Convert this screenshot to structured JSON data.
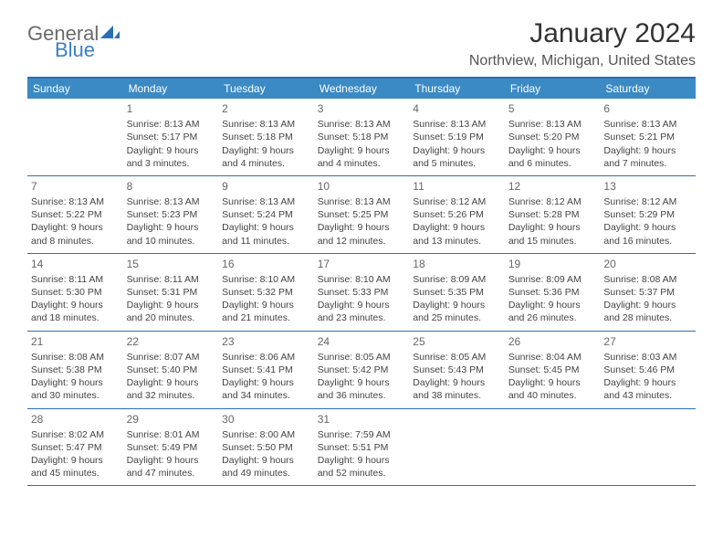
{
  "logo": {
    "part1": "General",
    "part2": "Blue"
  },
  "title": "January 2024",
  "location": "Northview, Michigan, United States",
  "header_bg": "#3b8ac4",
  "border_color": "#2a6fb5",
  "day_names": [
    "Sunday",
    "Monday",
    "Tuesday",
    "Wednesday",
    "Thursday",
    "Friday",
    "Saturday"
  ],
  "weeks": [
    [
      {
        "n": "",
        "sr": "",
        "ss": "",
        "d1": "",
        "d2": ""
      },
      {
        "n": "1",
        "sr": "Sunrise: 8:13 AM",
        "ss": "Sunset: 5:17 PM",
        "d1": "Daylight: 9 hours",
        "d2": "and 3 minutes."
      },
      {
        "n": "2",
        "sr": "Sunrise: 8:13 AM",
        "ss": "Sunset: 5:18 PM",
        "d1": "Daylight: 9 hours",
        "d2": "and 4 minutes."
      },
      {
        "n": "3",
        "sr": "Sunrise: 8:13 AM",
        "ss": "Sunset: 5:18 PM",
        "d1": "Daylight: 9 hours",
        "d2": "and 4 minutes."
      },
      {
        "n": "4",
        "sr": "Sunrise: 8:13 AM",
        "ss": "Sunset: 5:19 PM",
        "d1": "Daylight: 9 hours",
        "d2": "and 5 minutes."
      },
      {
        "n": "5",
        "sr": "Sunrise: 8:13 AM",
        "ss": "Sunset: 5:20 PM",
        "d1": "Daylight: 9 hours",
        "d2": "and 6 minutes."
      },
      {
        "n": "6",
        "sr": "Sunrise: 8:13 AM",
        "ss": "Sunset: 5:21 PM",
        "d1": "Daylight: 9 hours",
        "d2": "and 7 minutes."
      }
    ],
    [
      {
        "n": "7",
        "sr": "Sunrise: 8:13 AM",
        "ss": "Sunset: 5:22 PM",
        "d1": "Daylight: 9 hours",
        "d2": "and 8 minutes."
      },
      {
        "n": "8",
        "sr": "Sunrise: 8:13 AM",
        "ss": "Sunset: 5:23 PM",
        "d1": "Daylight: 9 hours",
        "d2": "and 10 minutes."
      },
      {
        "n": "9",
        "sr": "Sunrise: 8:13 AM",
        "ss": "Sunset: 5:24 PM",
        "d1": "Daylight: 9 hours",
        "d2": "and 11 minutes."
      },
      {
        "n": "10",
        "sr": "Sunrise: 8:13 AM",
        "ss": "Sunset: 5:25 PM",
        "d1": "Daylight: 9 hours",
        "d2": "and 12 minutes."
      },
      {
        "n": "11",
        "sr": "Sunrise: 8:12 AM",
        "ss": "Sunset: 5:26 PM",
        "d1": "Daylight: 9 hours",
        "d2": "and 13 minutes."
      },
      {
        "n": "12",
        "sr": "Sunrise: 8:12 AM",
        "ss": "Sunset: 5:28 PM",
        "d1": "Daylight: 9 hours",
        "d2": "and 15 minutes."
      },
      {
        "n": "13",
        "sr": "Sunrise: 8:12 AM",
        "ss": "Sunset: 5:29 PM",
        "d1": "Daylight: 9 hours",
        "d2": "and 16 minutes."
      }
    ],
    [
      {
        "n": "14",
        "sr": "Sunrise: 8:11 AM",
        "ss": "Sunset: 5:30 PM",
        "d1": "Daylight: 9 hours",
        "d2": "and 18 minutes."
      },
      {
        "n": "15",
        "sr": "Sunrise: 8:11 AM",
        "ss": "Sunset: 5:31 PM",
        "d1": "Daylight: 9 hours",
        "d2": "and 20 minutes."
      },
      {
        "n": "16",
        "sr": "Sunrise: 8:10 AM",
        "ss": "Sunset: 5:32 PM",
        "d1": "Daylight: 9 hours",
        "d2": "and 21 minutes."
      },
      {
        "n": "17",
        "sr": "Sunrise: 8:10 AM",
        "ss": "Sunset: 5:33 PM",
        "d1": "Daylight: 9 hours",
        "d2": "and 23 minutes."
      },
      {
        "n": "18",
        "sr": "Sunrise: 8:09 AM",
        "ss": "Sunset: 5:35 PM",
        "d1": "Daylight: 9 hours",
        "d2": "and 25 minutes."
      },
      {
        "n": "19",
        "sr": "Sunrise: 8:09 AM",
        "ss": "Sunset: 5:36 PM",
        "d1": "Daylight: 9 hours",
        "d2": "and 26 minutes."
      },
      {
        "n": "20",
        "sr": "Sunrise: 8:08 AM",
        "ss": "Sunset: 5:37 PM",
        "d1": "Daylight: 9 hours",
        "d2": "and 28 minutes."
      }
    ],
    [
      {
        "n": "21",
        "sr": "Sunrise: 8:08 AM",
        "ss": "Sunset: 5:38 PM",
        "d1": "Daylight: 9 hours",
        "d2": "and 30 minutes."
      },
      {
        "n": "22",
        "sr": "Sunrise: 8:07 AM",
        "ss": "Sunset: 5:40 PM",
        "d1": "Daylight: 9 hours",
        "d2": "and 32 minutes."
      },
      {
        "n": "23",
        "sr": "Sunrise: 8:06 AM",
        "ss": "Sunset: 5:41 PM",
        "d1": "Daylight: 9 hours",
        "d2": "and 34 minutes."
      },
      {
        "n": "24",
        "sr": "Sunrise: 8:05 AM",
        "ss": "Sunset: 5:42 PM",
        "d1": "Daylight: 9 hours",
        "d2": "and 36 minutes."
      },
      {
        "n": "25",
        "sr": "Sunrise: 8:05 AM",
        "ss": "Sunset: 5:43 PM",
        "d1": "Daylight: 9 hours",
        "d2": "and 38 minutes."
      },
      {
        "n": "26",
        "sr": "Sunrise: 8:04 AM",
        "ss": "Sunset: 5:45 PM",
        "d1": "Daylight: 9 hours",
        "d2": "and 40 minutes."
      },
      {
        "n": "27",
        "sr": "Sunrise: 8:03 AM",
        "ss": "Sunset: 5:46 PM",
        "d1": "Daylight: 9 hours",
        "d2": "and 43 minutes."
      }
    ],
    [
      {
        "n": "28",
        "sr": "Sunrise: 8:02 AM",
        "ss": "Sunset: 5:47 PM",
        "d1": "Daylight: 9 hours",
        "d2": "and 45 minutes."
      },
      {
        "n": "29",
        "sr": "Sunrise: 8:01 AM",
        "ss": "Sunset: 5:49 PM",
        "d1": "Daylight: 9 hours",
        "d2": "and 47 minutes."
      },
      {
        "n": "30",
        "sr": "Sunrise: 8:00 AM",
        "ss": "Sunset: 5:50 PM",
        "d1": "Daylight: 9 hours",
        "d2": "and 49 minutes."
      },
      {
        "n": "31",
        "sr": "Sunrise: 7:59 AM",
        "ss": "Sunset: 5:51 PM",
        "d1": "Daylight: 9 hours",
        "d2": "and 52 minutes."
      },
      {
        "n": "",
        "sr": "",
        "ss": "",
        "d1": "",
        "d2": ""
      },
      {
        "n": "",
        "sr": "",
        "ss": "",
        "d1": "",
        "d2": ""
      },
      {
        "n": "",
        "sr": "",
        "ss": "",
        "d1": "",
        "d2": ""
      }
    ]
  ]
}
